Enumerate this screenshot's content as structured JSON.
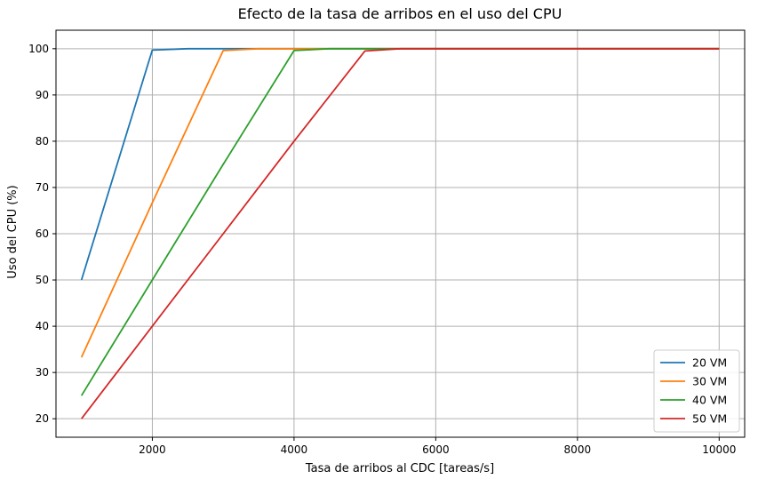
{
  "chart_data": {
    "type": "line",
    "title": "Efecto de la tasa de arribos en el uso del CPU",
    "xlabel": "Tasa de arribos al CDC [tareas/s]",
    "ylabel": "Uso del CPU (%)",
    "xlim": [
      640,
      10360
    ],
    "ylim": [
      16.0,
      104.0
    ],
    "xticks": [
      2000,
      4000,
      6000,
      8000,
      10000
    ],
    "xtick_labels": [
      "2000",
      "4000",
      "6000",
      "8000",
      "10000"
    ],
    "yticks": [
      20,
      30,
      40,
      50,
      60,
      70,
      80,
      90,
      100
    ],
    "ytick_labels": [
      "20",
      "30",
      "40",
      "50",
      "60",
      "70",
      "80",
      "90",
      "100"
    ],
    "grid": true,
    "legend_position": "lower right",
    "series": [
      {
        "name": "20 VM",
        "color": "#1f77b4",
        "x": [
          1000,
          2000,
          2500,
          3000,
          3500,
          4000,
          4500,
          5000,
          5500,
          6000,
          6500,
          7000,
          7500,
          8000,
          8500,
          9000,
          9500,
          10000
        ],
        "values": [
          50,
          99.7,
          100,
          100,
          100,
          100,
          100,
          100,
          100,
          100,
          100,
          100,
          100,
          100,
          100,
          100,
          100,
          100
        ]
      },
      {
        "name": "30 VM",
        "color": "#ff7f0e",
        "x": [
          1000,
          2000,
          3000,
          3500,
          4000,
          4500,
          5000,
          5500,
          6000,
          6500,
          7000,
          7500,
          8000,
          8500,
          9000,
          9500,
          10000
        ],
        "values": [
          33.3,
          66.7,
          99.6,
          100,
          100,
          100,
          100,
          100,
          100,
          100,
          100,
          100,
          100,
          100,
          100,
          100,
          100
        ]
      },
      {
        "name": "40 VM",
        "color": "#2ca02c",
        "x": [
          1000,
          2000,
          3000,
          4000,
          4500,
          5000,
          5500,
          6000,
          6500,
          7000,
          7500,
          8000,
          8500,
          9000,
          9500,
          10000
        ],
        "values": [
          25,
          50,
          75,
          99.6,
          100,
          100,
          100,
          100,
          100,
          100,
          100,
          100,
          100,
          100,
          100,
          100
        ]
      },
      {
        "name": "50 VM",
        "color": "#d62728",
        "x": [
          1000,
          2000,
          3000,
          4000,
          5000,
          5500,
          6000,
          6500,
          7000,
          7500,
          8000,
          8500,
          9000,
          9500,
          10000
        ],
        "values": [
          20,
          40,
          60,
          80,
          99.5,
          100,
          100,
          100,
          100,
          100,
          100,
          100,
          100,
          100,
          100
        ]
      }
    ]
  }
}
